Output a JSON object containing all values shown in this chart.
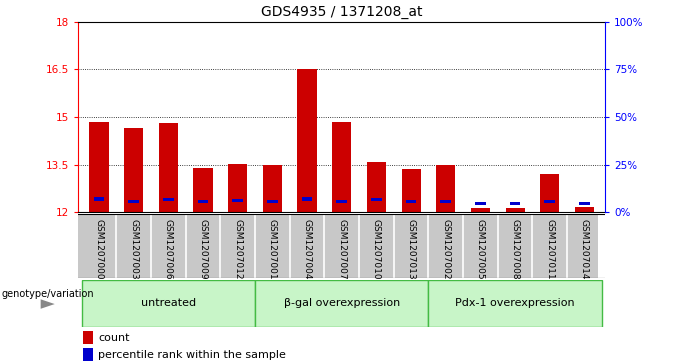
{
  "title": "GDS4935 / 1371208_at",
  "samples": [
    "GSM1207000",
    "GSM1207003",
    "GSM1207006",
    "GSM1207009",
    "GSM1207012",
    "GSM1207001",
    "GSM1207004",
    "GSM1207007",
    "GSM1207010",
    "GSM1207013",
    "GSM1207002",
    "GSM1207005",
    "GSM1207008",
    "GSM1207011",
    "GSM1207014"
  ],
  "count_values": [
    14.85,
    14.65,
    14.82,
    13.4,
    13.52,
    13.48,
    16.5,
    14.85,
    13.58,
    13.35,
    13.48,
    12.15,
    12.15,
    13.2,
    12.18
  ],
  "percentile_values": [
    12.42,
    12.35,
    12.4,
    12.35,
    12.38,
    12.35,
    12.42,
    12.35,
    12.4,
    12.35,
    12.35,
    12.28,
    12.28,
    12.35,
    12.28
  ],
  "ymin": 12,
  "ymax": 18,
  "yticks_left": [
    12,
    13.5,
    15,
    16.5,
    18
  ],
  "yticks_right": [
    0,
    25,
    50,
    75,
    100
  ],
  "yright_labels": [
    "0%",
    "25%",
    "50%",
    "75%",
    "100%"
  ],
  "groups": [
    {
      "label": "untreated",
      "start": 0,
      "end": 5
    },
    {
      "label": "β-gal overexpression",
      "start": 5,
      "end": 10
    },
    {
      "label": "Pdx-1 overexpression",
      "start": 10,
      "end": 15
    }
  ],
  "group_color_light": "#C8F5C8",
  "group_color_dark": "#44BB44",
  "bar_color": "#CC0000",
  "percentile_color": "#0000CC",
  "bar_width": 0.55,
  "sample_bg_color": "#C8C8C8",
  "group_label_text": "genotype/variation",
  "legend_count": "count",
  "legend_pct": "percentile rank within the sample"
}
